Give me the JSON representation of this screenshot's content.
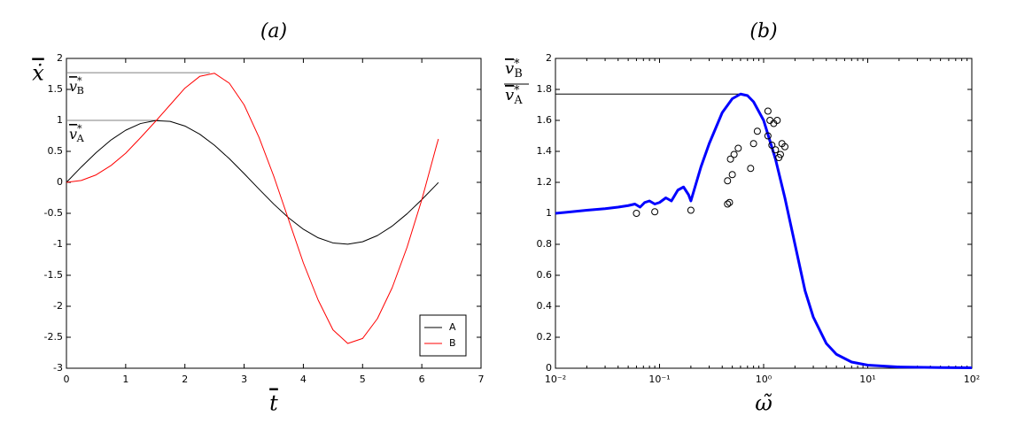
{
  "chart_data": [
    {
      "type": "line",
      "title": "(a)",
      "x_label": {
        "text": "t",
        "overline": true
      },
      "y_label": {
        "text": "ẋ",
        "overline": true
      },
      "xlim": [
        0,
        7
      ],
      "xticks": [
        0,
        1,
        2,
        3,
        4,
        5,
        6,
        7
      ],
      "ylim": [
        -3,
        2
      ],
      "yticks": [
        -3,
        -2.5,
        -2,
        -1.5,
        -1,
        -0.5,
        0,
        0.5,
        1,
        1.5,
        2
      ],
      "legend": "lower right",
      "series": [
        {
          "name": "A",
          "color": "#000000",
          "width": 1,
          "x": [
            0,
            0.25,
            0.5,
            0.75,
            1,
            1.25,
            1.5,
            1.75,
            2,
            2.25,
            2.5,
            2.75,
            3,
            3.25,
            3.5,
            3.75,
            4,
            4.25,
            4.5,
            4.75,
            5,
            5.25,
            5.5,
            5.75,
            6,
            6.25,
            6.28
          ],
          "values": [
            0,
            0.247,
            0.479,
            0.682,
            0.841,
            0.949,
            0.997,
            0.984,
            0.909,
            0.778,
            0.598,
            0.382,
            0.141,
            -0.108,
            -0.351,
            -0.572,
            -0.757,
            -0.895,
            -0.978,
            -0.999,
            -0.959,
            -0.859,
            -0.706,
            -0.508,
            -0.279,
            -0.033,
            -0.003
          ]
        },
        {
          "name": "B",
          "color": "#ff0000",
          "width": 1,
          "x": [
            0,
            0.25,
            0.5,
            0.75,
            1,
            1.25,
            1.5,
            1.75,
            2,
            2.25,
            2.5,
            2.75,
            3,
            3.25,
            3.5,
            3.75,
            4,
            4.25,
            4.5,
            4.75,
            5,
            5.25,
            5.5,
            5.75,
            6,
            6.25,
            6.28
          ],
          "values": [
            0,
            0.03,
            0.12,
            0.27,
            0.47,
            0.72,
            0.98,
            1.25,
            1.52,
            1.71,
            1.76,
            1.6,
            1.25,
            0.73,
            0.1,
            -0.6,
            -1.3,
            -1.9,
            -2.38,
            -2.6,
            -2.52,
            -2.2,
            -1.7,
            -1.05,
            -0.28,
            0.6,
            0.7
          ]
        }
      ],
      "reference_lines": [
        {
          "y": 1,
          "x_start": 0,
          "x_end": 1.57,
          "color": "#808080",
          "label": {
            "base": "v",
            "sup": "*",
            "sub": "A"
          }
        },
        {
          "y": 1.77,
          "x_start": 0,
          "x_end": 2.42,
          "color": "#808080",
          "label": {
            "base": "v",
            "sup": "*",
            "sub": "B"
          }
        }
      ]
    },
    {
      "type": "line",
      "title": "(b)",
      "xscale": "log",
      "x_label": {
        "text": "ω̃"
      },
      "y_label": {
        "numerator": {
          "base": "v",
          "sup": "*",
          "sub": "B"
        },
        "denominator": {
          "base": "v",
          "sup": "*",
          "sub": "A"
        }
      },
      "xlim": [
        0.01,
        100
      ],
      "xticks": [
        {
          "value": 0.01,
          "label": "10⁻²"
        },
        {
          "value": 0.1,
          "label": "10⁻¹"
        },
        {
          "value": 1,
          "label": "10⁰"
        },
        {
          "value": 10,
          "label": "10¹"
        },
        {
          "value": 100,
          "label": "10²"
        }
      ],
      "ylim": [
        0,
        2
      ],
      "yticks": [
        0,
        0.2,
        0.4,
        0.6,
        0.8,
        1,
        1.2,
        1.4,
        1.6,
        1.8,
        2
      ],
      "series": [
        {
          "color": "#0000ff",
          "width": 3,
          "x": [
            0.01,
            0.02,
            0.03,
            0.04,
            0.05,
            0.058,
            0.065,
            0.072,
            0.08,
            0.09,
            0.1,
            0.115,
            0.13,
            0.15,
            0.17,
            0.19,
            0.2,
            0.25,
            0.3,
            0.4,
            0.5,
            0.6,
            0.7,
            0.8,
            1,
            1.3,
            1.6,
            2,
            2.5,
            3,
            4,
            5,
            7,
            10,
            20,
            50,
            100
          ],
          "values": [
            1.0,
            1.02,
            1.03,
            1.04,
            1.05,
            1.06,
            1.04,
            1.07,
            1.08,
            1.06,
            1.07,
            1.1,
            1.08,
            1.15,
            1.17,
            1.12,
            1.08,
            1.3,
            1.45,
            1.65,
            1.74,
            1.77,
            1.76,
            1.72,
            1.6,
            1.35,
            1.1,
            0.8,
            0.5,
            0.33,
            0.16,
            0.09,
            0.04,
            0.02,
            0.008,
            0.004,
            0.003
          ]
        },
        {
          "color": "#000000",
          "marker": "circle",
          "x": [
            0.06,
            0.09,
            0.2,
            0.45,
            0.47,
            0.45,
            0.48,
            0.52,
            0.5,
            0.57,
            0.75,
            0.8,
            0.87,
            1.1,
            1.1,
            1.15,
            1.2,
            1.25,
            1.3,
            1.35,
            1.4,
            1.45,
            1.5,
            1.6
          ],
          "values": [
            1.0,
            1.01,
            1.02,
            1.06,
            1.07,
            1.21,
            1.35,
            1.38,
            1.25,
            1.42,
            1.29,
            1.45,
            1.53,
            1.66,
            1.5,
            1.6,
            1.44,
            1.58,
            1.41,
            1.6,
            1.36,
            1.38,
            1.45,
            1.43
          ]
        }
      ],
      "reference_lines": [
        {
          "y": 1.77,
          "x_start": 0.01,
          "x_end": 0.6,
          "color": "#000000"
        }
      ]
    }
  ]
}
